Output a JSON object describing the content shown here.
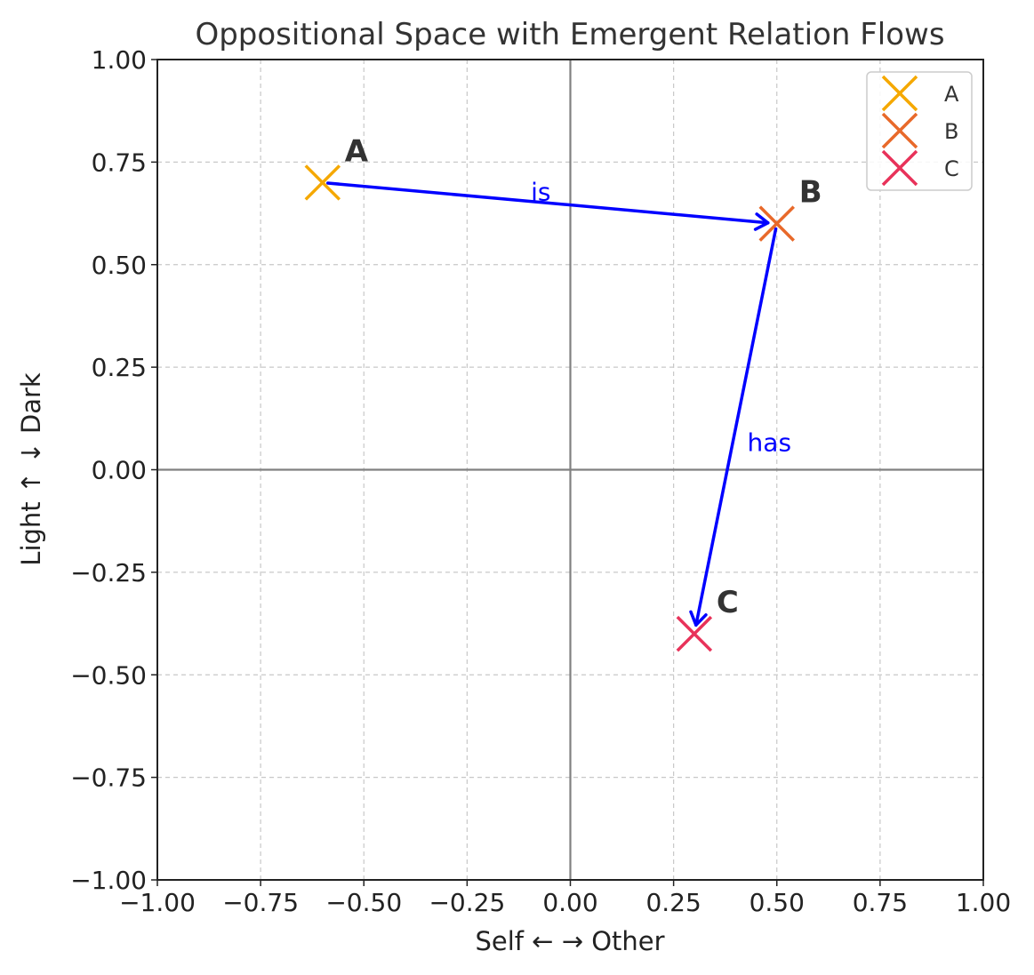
{
  "chart_data": {
    "type": "scatter",
    "title": "Oppositional Space with Emergent Relation Flows",
    "xlabel": "Self  ←    → Other",
    "ylabel": "Light  ↑     ↓ Dark",
    "xlim": [
      -1.0,
      1.0
    ],
    "ylim": [
      -1.0,
      1.0
    ],
    "xticks": [
      -1.0,
      -0.75,
      -0.5,
      -0.25,
      0.0,
      0.25,
      0.5,
      0.75,
      1.0
    ],
    "yticks": [
      -1.0,
      -0.75,
      -0.5,
      -0.25,
      0.0,
      0.25,
      0.5,
      0.75,
      1.0
    ],
    "xtick_labels": [
      "−1.00",
      "−0.75",
      "−0.50",
      "−0.25",
      "0.00",
      "0.25",
      "0.50",
      "0.75",
      "1.00"
    ],
    "ytick_labels": [
      "−1.00",
      "−0.75",
      "−0.50",
      "−0.25",
      "0.00",
      "0.25",
      "0.50",
      "0.75",
      "1.00"
    ],
    "grid": true,
    "legend_position": "top-right",
    "marker": "x",
    "points": [
      {
        "name": "A",
        "x": -0.6,
        "y": 0.7,
        "color": "#f5a800"
      },
      {
        "name": "B",
        "x": 0.5,
        "y": 0.6,
        "color": "#e8692a"
      },
      {
        "name": "C",
        "x": 0.3,
        "y": -0.4,
        "color": "#e8325a"
      }
    ],
    "relations": [
      {
        "from": "A",
        "to": "B",
        "label": "is",
        "color": "#0000ff"
      },
      {
        "from": "B",
        "to": "C",
        "label": "has",
        "color": "#0000ff"
      }
    ]
  }
}
